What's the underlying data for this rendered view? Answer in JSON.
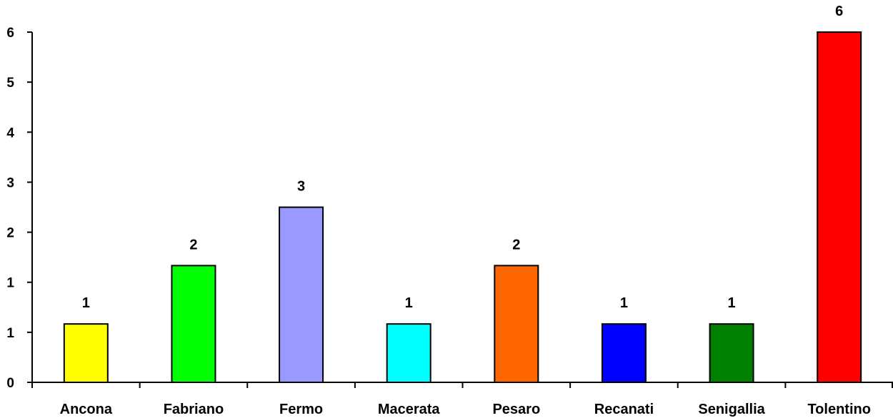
{
  "chart_data": {
    "type": "bar",
    "title": "",
    "xlabel": "",
    "ylabel": "",
    "categories": [
      "Ancona",
      "Fabriano",
      "Fermo",
      "Macerata",
      "Pesaro",
      "Recanati",
      "Senigallia",
      "Tolentino"
    ],
    "values": [
      1,
      2,
      3,
      1,
      2,
      1,
      1,
      6
    ],
    "colors": [
      "#FFFF00",
      "#00FF00",
      "#9999FF",
      "#00FFFF",
      "#FF6600",
      "#0000FF",
      "#008000",
      "#FF0000"
    ],
    "y_ticks": [
      "0",
      "1",
      "1",
      "2",
      "3",
      "4",
      "5",
      "6"
    ],
    "ylim": [
      0,
      6
    ],
    "grid": false,
    "legend": "none",
    "data_labels": true
  }
}
